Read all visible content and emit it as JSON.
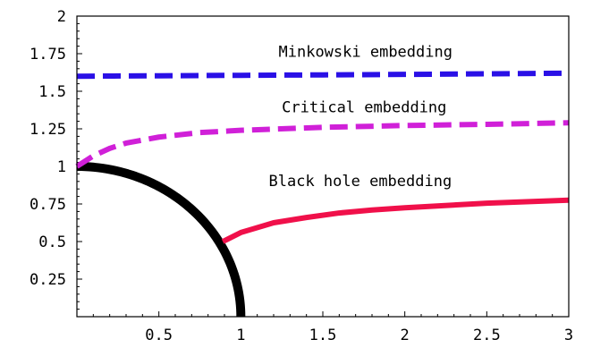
{
  "chart_data": {
    "type": "line",
    "title": "",
    "xlabel": "",
    "ylabel": "",
    "xlim": [
      0,
      3
    ],
    "ylim": [
      0,
      2
    ],
    "grid": false,
    "x_ticks": [
      {
        "value": 0.5,
        "label": "0.5"
      },
      {
        "value": 1,
        "label": "1"
      },
      {
        "value": 1.5,
        "label": "1.5"
      },
      {
        "value": 2,
        "label": "2"
      },
      {
        "value": 2.5,
        "label": "2.5"
      },
      {
        "value": 3,
        "label": "3"
      }
    ],
    "y_ticks": [
      {
        "value": 0.25,
        "label": "0.25"
      },
      {
        "value": 0.5,
        "label": "0.5"
      },
      {
        "value": 0.75,
        "label": "0.75"
      },
      {
        "value": 1,
        "label": "1"
      },
      {
        "value": 1.25,
        "label": "1.25"
      },
      {
        "value": 1.5,
        "label": "1.5"
      },
      {
        "value": 1.75,
        "label": "1.75"
      },
      {
        "value": 2,
        "label": "2"
      }
    ],
    "series": [
      {
        "color": "#2a10e6",
        "dash": "dashed",
        "x": [
          0,
          0.5,
          1,
          1.5,
          2,
          2.5,
          3
        ],
        "y": [
          1.6,
          1.603,
          1.606,
          1.609,
          1.612,
          1.616,
          1.62
        ]
      },
      {
        "color": "#d020d8",
        "dash": "dashed",
        "x": [
          0,
          0.1,
          0.2,
          0.3,
          0.5,
          0.75,
          1,
          1.5,
          2,
          2.5,
          3
        ],
        "y": [
          1.0,
          1.07,
          1.12,
          1.155,
          1.195,
          1.225,
          1.24,
          1.26,
          1.272,
          1.28,
          1.29
        ]
      },
      {
        "color": "#f0104a",
        "dash": "solid",
        "x": [
          0.89,
          1.0,
          1.2,
          1.4,
          1.6,
          1.8,
          2.0,
          2.5,
          3.0
        ],
        "y": [
          0.5,
          0.56,
          0.625,
          0.66,
          0.69,
          0.71,
          0.725,
          0.755,
          0.775
        ]
      },
      {
        "color": "#000000",
        "dash": "solid",
        "shape": "quarter-circle",
        "radius": 1
      }
    ],
    "annotations": [
      {
        "text": "Minkowski embedding",
        "x": 1.23,
        "y": 1.73
      },
      {
        "text": "Critical embedding",
        "x": 1.25,
        "y": 1.36
      },
      {
        "text": "Black hole embedding",
        "x": 1.17,
        "y": 0.87
      }
    ]
  }
}
